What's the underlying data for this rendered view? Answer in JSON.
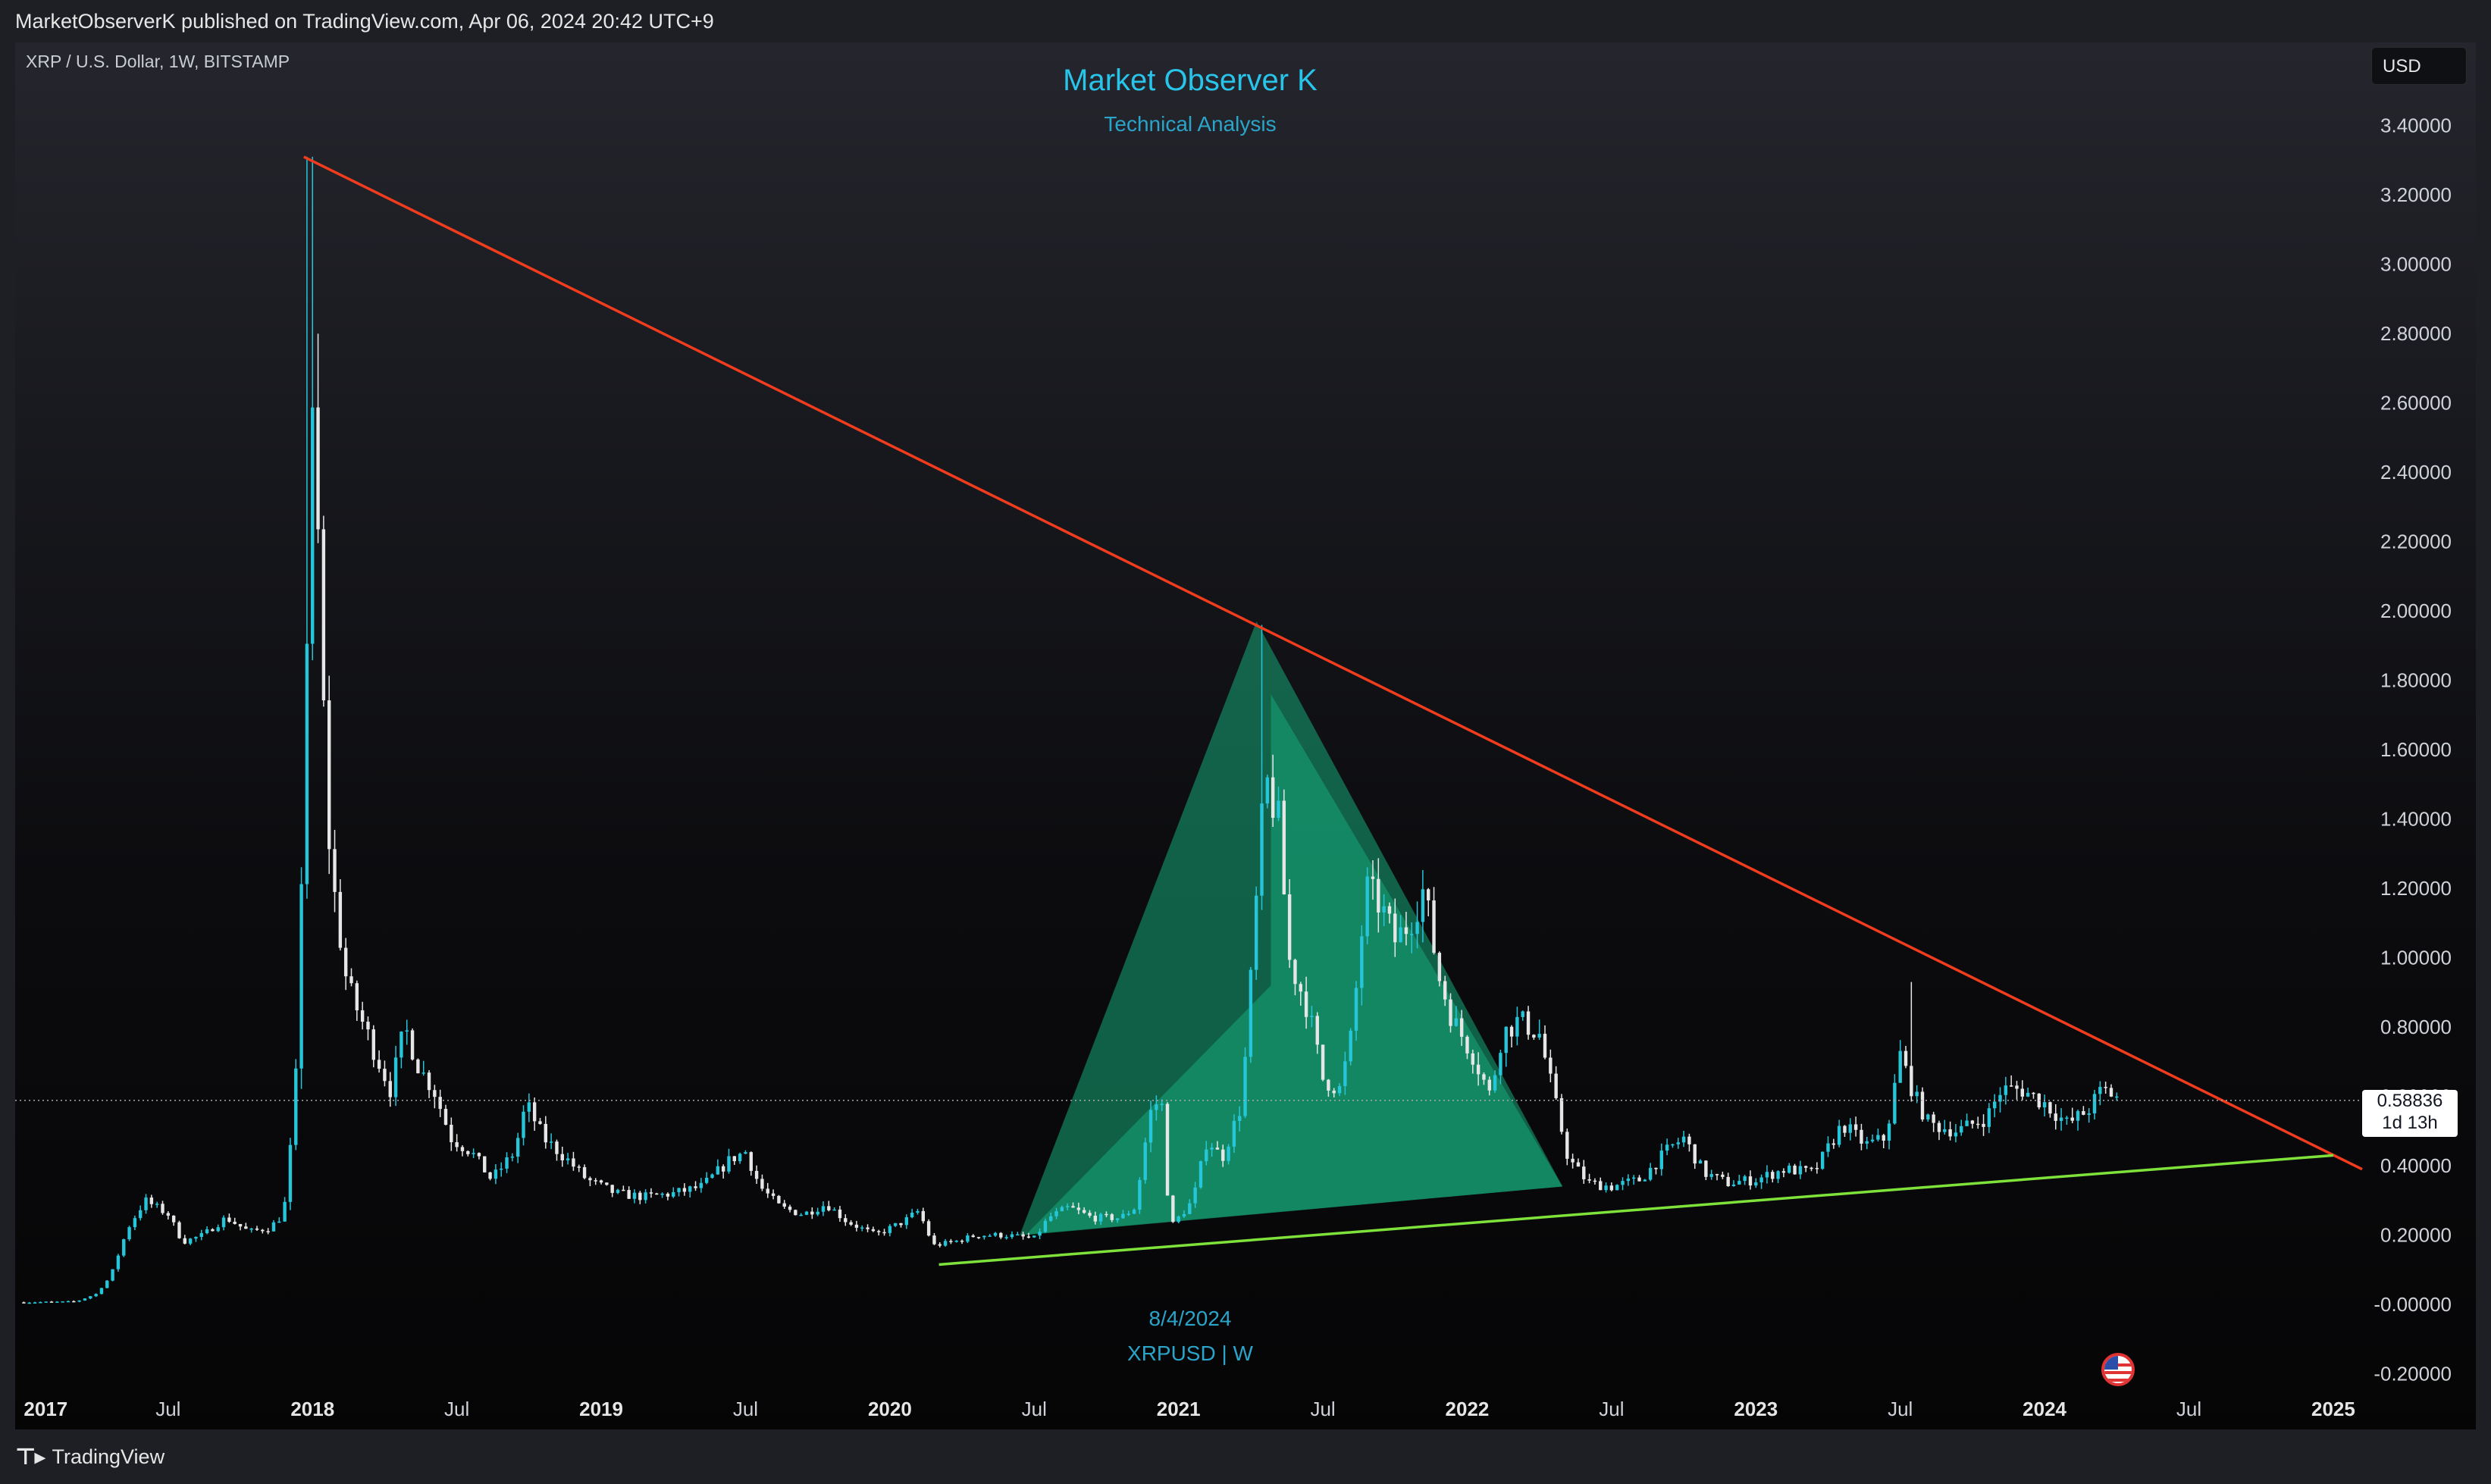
{
  "header": {
    "publish_line": "MarketObserverK published on TradingView.com, Apr 06, 2024 20:42 UTC+9"
  },
  "legend": {
    "symbol_line": "XRP / U.S. Dollar, 1W, BITSTAMP"
  },
  "watermark": {
    "title": "Market Observer K",
    "subtitle": "Technical Analysis",
    "date": "8/4/2024",
    "symbol": "XRPUSD | W"
  },
  "controls": {
    "currency_label": "USD"
  },
  "last_price": {
    "value": "0.58836",
    "countdown": "1d 13h"
  },
  "footer": {
    "brand": "TradingView"
  },
  "colors": {
    "up_candle": "#26c6da",
    "down_candle": "#e6e6e6",
    "resistance_line": "#f23c1e",
    "support_line": "#7ee23b",
    "pattern_fill": "#16a878"
  },
  "chart_data": {
    "type": "candlestick",
    "symbol": "XRPUSD",
    "interval": "1W",
    "exchange": "BITSTAMP",
    "currency": "USD",
    "y_axis": {
      "ylim": [
        -0.26,
        3.5
      ],
      "ticks": [
        "3.40000",
        "3.20000",
        "3.00000",
        "2.80000",
        "2.60000",
        "2.40000",
        "2.20000",
        "2.00000",
        "1.80000",
        "1.60000",
        "1.40000",
        "1.20000",
        "1.00000",
        "0.80000",
        "0.60000",
        "0.40000",
        "0.20000",
        "-0.00000",
        "-0.20000"
      ],
      "tick_values": [
        3.4,
        3.2,
        3.0,
        2.8,
        2.6,
        2.4,
        2.2,
        2.0,
        1.8,
        1.6,
        1.4,
        1.2,
        1.0,
        0.8,
        0.6,
        0.4,
        0.2,
        0.0,
        -0.2
      ]
    },
    "x_axis": {
      "range": [
        "2017-01",
        "2025-02"
      ],
      "ticks": [
        {
          "label": "2017",
          "t": 2017.0,
          "year": true
        },
        {
          "label": "Jul",
          "t": 2017.5,
          "year": false
        },
        {
          "label": "2018",
          "t": 2018.0,
          "year": true
        },
        {
          "label": "Jul",
          "t": 2018.5,
          "year": false
        },
        {
          "label": "2019",
          "t": 2019.0,
          "year": true
        },
        {
          "label": "Jul",
          "t": 2019.5,
          "year": false
        },
        {
          "label": "2020",
          "t": 2020.0,
          "year": true
        },
        {
          "label": "Jul",
          "t": 2020.5,
          "year": false
        },
        {
          "label": "2021",
          "t": 2021.0,
          "year": true
        },
        {
          "label": "Jul",
          "t": 2021.5,
          "year": false
        },
        {
          "label": "2022",
          "t": 2022.0,
          "year": true
        },
        {
          "label": "Jul",
          "t": 2022.5,
          "year": false
        },
        {
          "label": "2023",
          "t": 2023.0,
          "year": true
        },
        {
          "label": "Jul",
          "t": 2023.5,
          "year": false
        },
        {
          "label": "2024",
          "t": 2024.0,
          "year": true
        },
        {
          "label": "Jul",
          "t": 2024.5,
          "year": false
        },
        {
          "label": "2025",
          "t": 2025.0,
          "year": true
        }
      ]
    },
    "last_price": 0.58836,
    "price_path": [
      [
        2017.0,
        0.006
      ],
      [
        2017.18,
        0.008
      ],
      [
        2017.25,
        0.03
      ],
      [
        2017.3,
        0.08
      ],
      [
        2017.36,
        0.22
      ],
      [
        2017.42,
        0.3
      ],
      [
        2017.5,
        0.26
      ],
      [
        2017.55,
        0.18
      ],
      [
        2017.62,
        0.2
      ],
      [
        2017.7,
        0.25
      ],
      [
        2017.78,
        0.21
      ],
      [
        2017.85,
        0.22
      ],
      [
        2017.9,
        0.26
      ],
      [
        2017.93,
        0.5
      ],
      [
        2017.95,
        0.75
      ],
      [
        2017.97,
        1.6
      ],
      [
        2018.0,
        2.5
      ],
      [
        2018.02,
        2.2
      ],
      [
        2018.05,
        1.4
      ],
      [
        2018.08,
        1.15
      ],
      [
        2018.12,
        0.92
      ],
      [
        2018.17,
        0.82
      ],
      [
        2018.22,
        0.72
      ],
      [
        2018.27,
        0.62
      ],
      [
        2018.32,
        0.8
      ],
      [
        2018.37,
        0.68
      ],
      [
        2018.42,
        0.62
      ],
      [
        2018.48,
        0.48
      ],
      [
        2018.55,
        0.44
      ],
      [
        2018.62,
        0.36
      ],
      [
        2018.7,
        0.44
      ],
      [
        2018.74,
        0.58
      ],
      [
        2018.8,
        0.48
      ],
      [
        2018.88,
        0.42
      ],
      [
        2018.95,
        0.36
      ],
      [
        2019.05,
        0.32
      ],
      [
        2019.15,
        0.31
      ],
      [
        2019.25,
        0.32
      ],
      [
        2019.35,
        0.34
      ],
      [
        2019.45,
        0.42
      ],
      [
        2019.5,
        0.44
      ],
      [
        2019.55,
        0.34
      ],
      [
        2019.62,
        0.28
      ],
      [
        2019.7,
        0.26
      ],
      [
        2019.78,
        0.29
      ],
      [
        2019.85,
        0.24
      ],
      [
        2019.95,
        0.2
      ],
      [
        2020.05,
        0.24
      ],
      [
        2020.1,
        0.27
      ],
      [
        2020.15,
        0.17
      ],
      [
        2020.22,
        0.18
      ],
      [
        2020.3,
        0.2
      ],
      [
        2020.4,
        0.2
      ],
      [
        2020.5,
        0.19
      ],
      [
        2020.55,
        0.25
      ],
      [
        2020.62,
        0.28
      ],
      [
        2020.7,
        0.25
      ],
      [
        2020.8,
        0.25
      ],
      [
        2020.85,
        0.28
      ],
      [
        2020.9,
        0.55
      ],
      [
        2020.94,
        0.6
      ],
      [
        2020.97,
        0.22
      ],
      [
        2021.05,
        0.3
      ],
      [
        2021.1,
        0.48
      ],
      [
        2021.15,
        0.42
      ],
      [
        2021.22,
        0.58
      ],
      [
        2021.26,
        1.05
      ],
      [
        2021.3,
        1.52
      ],
      [
        2021.35,
        1.38
      ],
      [
        2021.38,
        1.0
      ],
      [
        2021.45,
        0.85
      ],
      [
        2021.5,
        0.65
      ],
      [
        2021.56,
        0.62
      ],
      [
        2021.6,
        0.78
      ],
      [
        2021.65,
        1.2
      ],
      [
        2021.7,
        1.15
      ],
      [
        2021.75,
        1.05
      ],
      [
        2021.8,
        1.1
      ],
      [
        2021.85,
        1.2
      ],
      [
        2021.9,
        0.95
      ],
      [
        2021.95,
        0.82
      ],
      [
        2022.02,
        0.72
      ],
      [
        2022.08,
        0.6
      ],
      [
        2022.12,
        0.78
      ],
      [
        2022.18,
        0.82
      ],
      [
        2022.25,
        0.78
      ],
      [
        2022.3,
        0.6
      ],
      [
        2022.35,
        0.42
      ],
      [
        2022.42,
        0.35
      ],
      [
        2022.5,
        0.34
      ],
      [
        2022.6,
        0.36
      ],
      [
        2022.7,
        0.45
      ],
      [
        2022.75,
        0.48
      ],
      [
        2022.82,
        0.38
      ],
      [
        2022.9,
        0.35
      ],
      [
        2023.0,
        0.36
      ],
      [
        2023.1,
        0.39
      ],
      [
        2023.2,
        0.38
      ],
      [
        2023.3,
        0.52
      ],
      [
        2023.38,
        0.46
      ],
      [
        2023.45,
        0.48
      ],
      [
        2023.5,
        0.72
      ],
      [
        2023.55,
        0.6
      ],
      [
        2023.6,
        0.52
      ],
      [
        2023.7,
        0.5
      ],
      [
        2023.8,
        0.54
      ],
      [
        2023.85,
        0.62
      ],
      [
        2023.92,
        0.62
      ],
      [
        2024.0,
        0.58
      ],
      [
        2024.08,
        0.52
      ],
      [
        2024.15,
        0.56
      ],
      [
        2024.2,
        0.62
      ],
      [
        2024.25,
        0.6
      ],
      [
        2024.26,
        0.58836
      ]
    ],
    "annotations": {
      "resistance_line": {
        "from": [
          2017.97,
          3.31
        ],
        "to": [
          2025.1,
          0.39
        ]
      },
      "support_line": {
        "from": [
          2020.17,
          0.115
        ],
        "to": [
          2025.0,
          0.43
        ]
      },
      "pattern_outer": [
        [
          2020.45,
          0.2
        ],
        [
          2021.27,
          1.97
        ],
        [
          2022.33,
          0.34
        ]
      ],
      "pattern_inner": [
        [
          2020.47,
          0.2
        ],
        [
          2021.32,
          0.92
        ],
        [
          2021.32,
          1.76
        ],
        [
          2022.33,
          0.34
        ]
      ]
    }
  }
}
